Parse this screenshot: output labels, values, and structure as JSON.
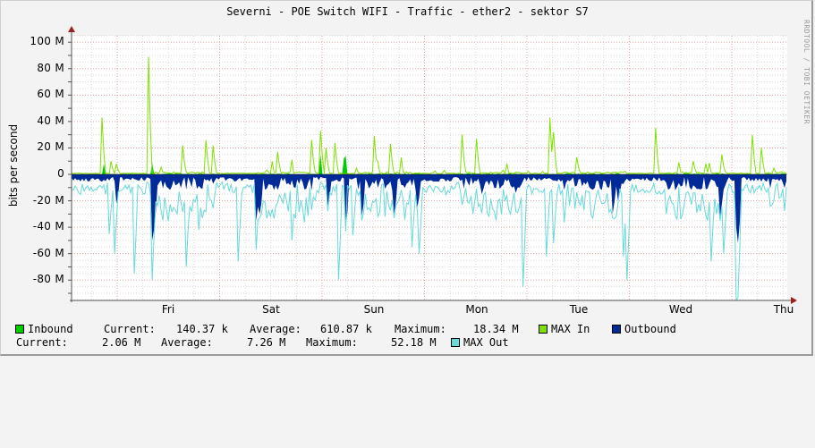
{
  "title": "Severni - POE Switch WIFI - Traffic - ether2 - sektor S7",
  "watermark": "RRDTOOL / TOBI OETIKER",
  "chart_data": {
    "type": "area",
    "title": "Severni - POE Switch WIFI - Traffic - ether2 - sektor S7",
    "xlabel": "",
    "ylabel": "bits per second",
    "ylim": [
      -90,
      105
    ],
    "y_ticks": [
      "100 M",
      "80 M",
      "60 M",
      "40 M",
      "20 M",
      "0",
      "-20 M",
      "-40 M",
      "-60 M",
      "-80 M"
    ],
    "x_ticks": [
      "Fri",
      "Sat",
      "Sun",
      "Mon",
      "Tue",
      "Wed",
      "Thu"
    ],
    "grid": true,
    "legend_position": "bottom",
    "series": [
      {
        "name": "Inbound",
        "color": "#00cc00",
        "style": "area",
        "current": "140.37 k",
        "average": "610.87 k",
        "maximum": "18.34 M"
      },
      {
        "name": "MAX In",
        "color": "#7fe000",
        "style": "line"
      },
      {
        "name": "Outbound",
        "color": "#002a97",
        "style": "area (negative)",
        "current": "2.06 M",
        "average": "7.26 M",
        "maximum": "52.18 M"
      },
      {
        "name": "MAX Out",
        "color": "#66d9d9",
        "style": "line (negative)"
      }
    ],
    "notable_peaks": [
      {
        "series": "MAX In",
        "day": "Thu (prev)",
        "value_M": 89
      },
      {
        "series": "MAX In",
        "day": "Wed (prev)",
        "value_M": 43
      },
      {
        "series": "MAX Out",
        "day": "Fri",
        "value_M": -78
      },
      {
        "series": "MAX Out",
        "day": "Sun",
        "value_M": -80
      },
      {
        "series": "MAX Out",
        "day": "Mon",
        "value_M": -88
      },
      {
        "series": "MAX Out",
        "day": "Wed",
        "value_M": -95
      },
      {
        "series": "Outbound",
        "day": "Wed",
        "value_M": -52
      }
    ]
  },
  "legend": {
    "row1": {
      "inbound_label": "Inbound",
      "current_label": "Current:",
      "current_value": "140.37 k",
      "average_label": "Average:",
      "average_value": "610.87 k",
      "maximum_label": "Maximum:",
      "maximum_value": "18.34 M",
      "max_in_label": "MAX In",
      "outbound_label": "Outbound"
    },
    "row2": {
      "current_label": "Current:",
      "current_value": "2.06 M",
      "average_label": "Average:",
      "average_value": "7.26 M",
      "maximum_label": "Maximum:",
      "maximum_value": "52.18 M",
      "max_out_label": "MAX Out"
    },
    "colors": {
      "inbound": "#00cc00",
      "max_in": "#7fe000",
      "outbound": "#002a97",
      "max_out": "#66d9d9"
    }
  }
}
